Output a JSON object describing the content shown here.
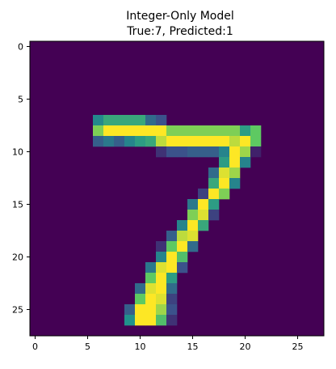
{
  "chart_data": {
    "type": "heatmap",
    "title": "Integer-Only  Model",
    "subtitle": "True:7, Predicted:1",
    "xlabel": "",
    "ylabel": "",
    "colormap": "viridis",
    "grid": false,
    "value_range": [
      0,
      1
    ],
    "rows": 28,
    "cols": 28,
    "x_ticks": [
      0,
      5,
      10,
      15,
      20,
      25
    ],
    "y_ticks": [
      0,
      5,
      10,
      15,
      20,
      25
    ],
    "pixels": [
      [
        7,
        6,
        0.47
      ],
      [
        7,
        7,
        0.6
      ],
      [
        7,
        8,
        0.6
      ],
      [
        7,
        9,
        0.6
      ],
      [
        7,
        10,
        0.6
      ],
      [
        7,
        11,
        0.35
      ],
      [
        7,
        12,
        0.25
      ],
      [
        8,
        6,
        0.8
      ],
      [
        8,
        7,
        1
      ],
      [
        8,
        8,
        1
      ],
      [
        8,
        9,
        1
      ],
      [
        8,
        10,
        1
      ],
      [
        8,
        11,
        1
      ],
      [
        8,
        12,
        1
      ],
      [
        8,
        13,
        0.8
      ],
      [
        8,
        14,
        0.8
      ],
      [
        8,
        15,
        0.8
      ],
      [
        8,
        16,
        0.8
      ],
      [
        8,
        17,
        0.8
      ],
      [
        8,
        18,
        0.8
      ],
      [
        8,
        19,
        0.8
      ],
      [
        8,
        20,
        0.55
      ],
      [
        8,
        21,
        0.75
      ],
      [
        9,
        6,
        0.3
      ],
      [
        9,
        7,
        0.4
      ],
      [
        9,
        8,
        0.3
      ],
      [
        9,
        9,
        0.45
      ],
      [
        9,
        10,
        0.55
      ],
      [
        9,
        11,
        0.6
      ],
      [
        9,
        12,
        0.9
      ],
      [
        9,
        13,
        1
      ],
      [
        9,
        14,
        1
      ],
      [
        9,
        15,
        1
      ],
      [
        9,
        16,
        1
      ],
      [
        9,
        17,
        1
      ],
      [
        9,
        18,
        1
      ],
      [
        9,
        19,
        0.9
      ],
      [
        9,
        20,
        1
      ],
      [
        9,
        21,
        0.75
      ],
      [
        10,
        12,
        0.15
      ],
      [
        10,
        13,
        0.25
      ],
      [
        10,
        14,
        0.25
      ],
      [
        10,
        15,
        0.3
      ],
      [
        10,
        16,
        0.3
      ],
      [
        10,
        17,
        0.3
      ],
      [
        10,
        18,
        0.45
      ],
      [
        10,
        19,
        1
      ],
      [
        10,
        20,
        0.85
      ],
      [
        10,
        21,
        0.1
      ],
      [
        11,
        18,
        0.55
      ],
      [
        11,
        19,
        1
      ],
      [
        11,
        20,
        0.45
      ],
      [
        12,
        17,
        0.35
      ],
      [
        12,
        18,
        0.95
      ],
      [
        12,
        19,
        0.85
      ],
      [
        13,
        17,
        0.6
      ],
      [
        13,
        18,
        1
      ],
      [
        13,
        19,
        0.45
      ],
      [
        14,
        16,
        0.2
      ],
      [
        14,
        17,
        1
      ],
      [
        14,
        18,
        0.8
      ],
      [
        15,
        15,
        0.4
      ],
      [
        15,
        16,
        1
      ],
      [
        15,
        17,
        0.55
      ],
      [
        16,
        15,
        0.8
      ],
      [
        16,
        16,
        0.95
      ],
      [
        16,
        17,
        0.2
      ],
      [
        17,
        14,
        0.45
      ],
      [
        17,
        15,
        1
      ],
      [
        17,
        16,
        0.6
      ],
      [
        18,
        13,
        0.3
      ],
      [
        18,
        14,
        0.9
      ],
      [
        18,
        15,
        0.95
      ],
      [
        19,
        12,
        0.15
      ],
      [
        19,
        13,
        0.75
      ],
      [
        19,
        14,
        1
      ],
      [
        19,
        15,
        0.35
      ],
      [
        20,
        12,
        0.45
      ],
      [
        20,
        13,
        1
      ],
      [
        20,
        14,
        0.7
      ],
      [
        21,
        11,
        0.4
      ],
      [
        21,
        12,
        0.95
      ],
      [
        21,
        13,
        1
      ],
      [
        21,
        14,
        0.25
      ],
      [
        22,
        11,
        0.75
      ],
      [
        22,
        12,
        1
      ],
      [
        22,
        13,
        0.55
      ],
      [
        23,
        10,
        0.35
      ],
      [
        23,
        11,
        0.95
      ],
      [
        23,
        12,
        1
      ],
      [
        23,
        13,
        0.35
      ],
      [
        24,
        10,
        0.75
      ],
      [
        24,
        11,
        1
      ],
      [
        24,
        12,
        0.95
      ],
      [
        24,
        13,
        0.2
      ],
      [
        25,
        9,
        0.3
      ],
      [
        25,
        10,
        1
      ],
      [
        25,
        11,
        1
      ],
      [
        25,
        12,
        0.85
      ],
      [
        25,
        13,
        0.25
      ],
      [
        26,
        9,
        0.5
      ],
      [
        26,
        10,
        1
      ],
      [
        26,
        11,
        1
      ],
      [
        26,
        12,
        0.7
      ],
      [
        26,
        13,
        0.15
      ]
    ]
  }
}
